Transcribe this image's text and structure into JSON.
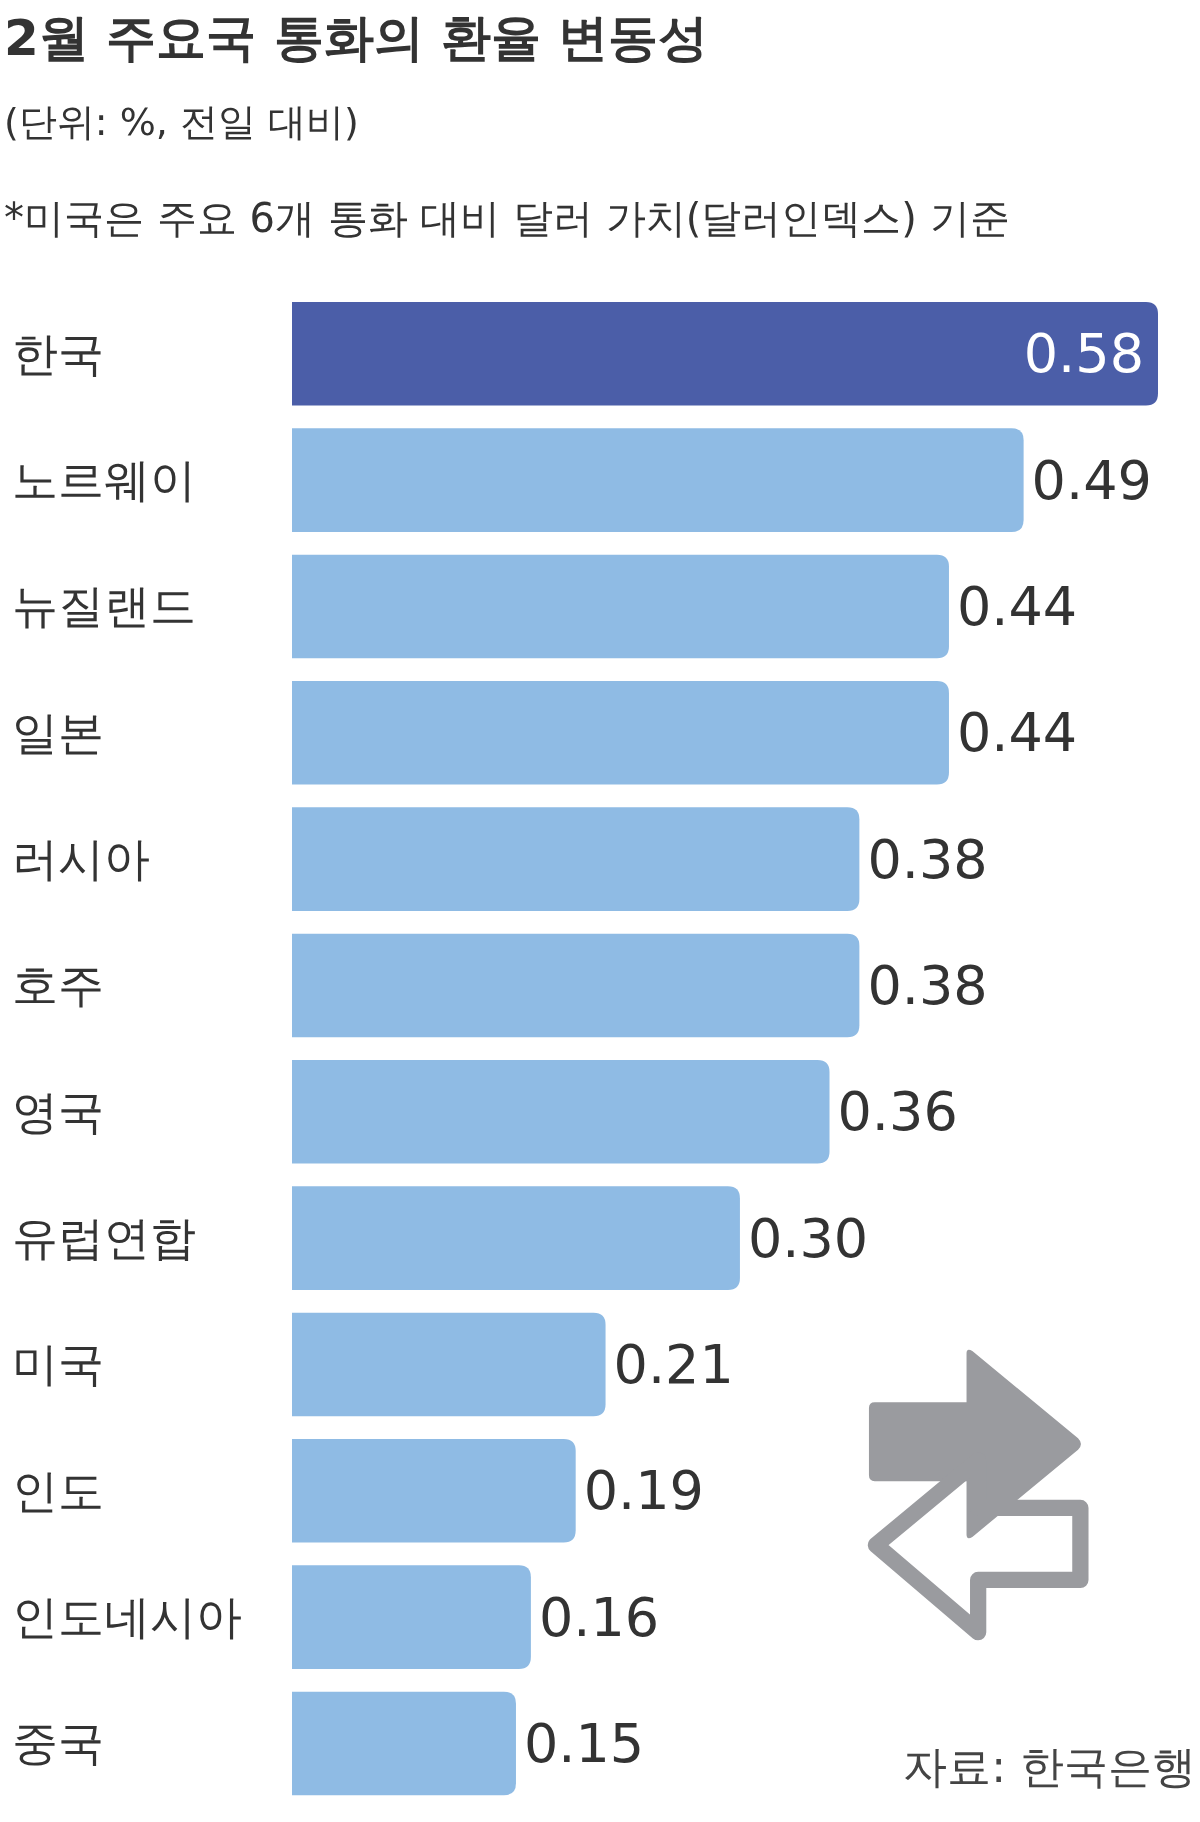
{
  "chart_data": {
    "type": "bar",
    "orientation": "horizontal",
    "title": "2월 주요국 통화의 환율 변동성",
    "subtitle": "(단위: %, 전일 대비)",
    "annotations": [
      "*미국은 주요 6개 통화 대비 달러 가치(달러인덱스) 기준",
      "자료: 한국은행"
    ],
    "categories": [
      "한국",
      "노르웨이",
      "뉴질랜드",
      "일본",
      "러시아",
      "호주",
      "영국",
      "유럽연합",
      "미국",
      "인도",
      "인도네시아",
      "중국"
    ],
    "values": [
      0.58,
      0.49,
      0.44,
      0.44,
      0.38,
      0.38,
      0.36,
      0.3,
      0.21,
      0.19,
      0.16,
      0.15
    ],
    "value_labels": [
      "0.58",
      "0.49",
      "0.44",
      "0.44",
      "0.38",
      "0.38",
      "0.36",
      "0.30",
      "0.21",
      "0.19",
      "0.16",
      "0.15"
    ],
    "colors": [
      "#4b5ea8",
      "#8fbbe4",
      "#8fbbe4",
      "#8fbbe4",
      "#8fbbe4",
      "#8fbbe4",
      "#8fbbe4",
      "#8fbbe4",
      "#8fbbe4",
      "#8fbbe4",
      "#8fbbe4",
      "#8fbbe4"
    ]
  }
}
